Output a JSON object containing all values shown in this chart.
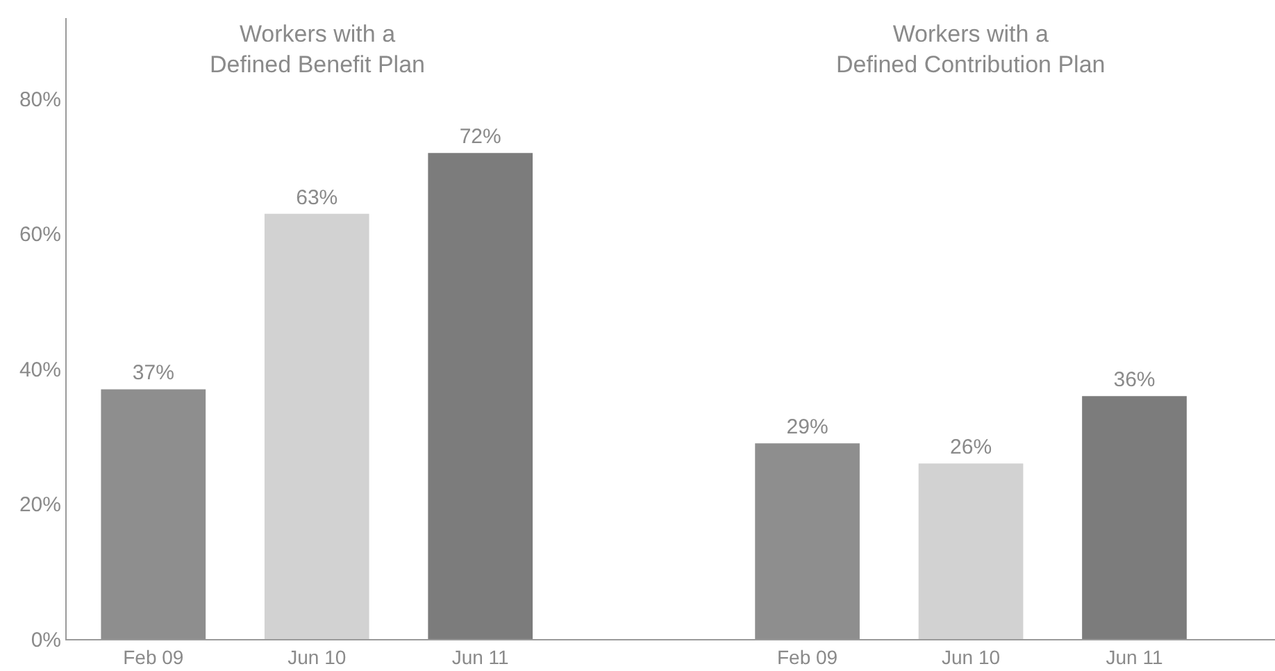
{
  "chart_data": {
    "type": "bar",
    "categories": [
      "Feb 09",
      "Jun 10",
      "Jun 11",
      null,
      "Feb 09",
      "Jun 10",
      "Jun 11"
    ],
    "values": [
      37,
      63,
      72,
      null,
      29,
      26,
      36
    ],
    "value_labels": [
      "37%",
      "63%",
      "72%",
      null,
      "29%",
      "26%",
      "36%"
    ],
    "colors": [
      "#8e8e8e",
      "#d2d2d2",
      "#7c7c7c",
      null,
      "#8e8e8e",
      "#d2d2d2",
      "#7c7c7c"
    ],
    "annotations": [
      "Workers with a\nDefined Benefit Plan",
      "Workers with a\nDefined Contribution Plan"
    ],
    "ylim": [
      0,
      92
    ],
    "yticks": [
      {
        "value": 0,
        "label": "0%"
      },
      {
        "value": 20,
        "label": "20%"
      },
      {
        "value": 40,
        "label": "40%"
      },
      {
        "value": 60,
        "label": "60%"
      },
      {
        "value": 80,
        "label": "80%"
      }
    ]
  }
}
